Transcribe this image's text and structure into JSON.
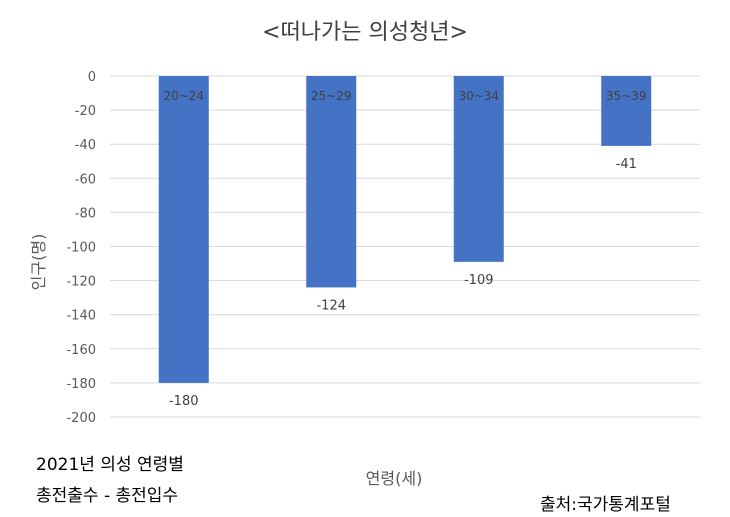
{
  "chart_data": {
    "type": "bar",
    "title": "<떠나가는 의성청년>",
    "xlabel": "연령(세)",
    "ylabel": "인구(명)",
    "categories": [
      "20~24",
      "25~29",
      "30~34",
      "35~39"
    ],
    "series": [
      {
        "values": [
          -180,
          -124,
          -109,
          -41
        ]
      }
    ],
    "ylim": [
      -200,
      0
    ],
    "yticks": [
      0,
      -20,
      -40,
      -60,
      -80,
      -100,
      -120,
      -140,
      -160,
      -180,
      -200
    ],
    "grid": true,
    "legend": "none",
    "bar_color": "#4472C4",
    "grid_color": "#D9D9D9"
  },
  "notes": {
    "line1": "2021년 의성 연령별",
    "line2": "총전출수 - 총전입수"
  },
  "source": "출처:국가통계포털"
}
